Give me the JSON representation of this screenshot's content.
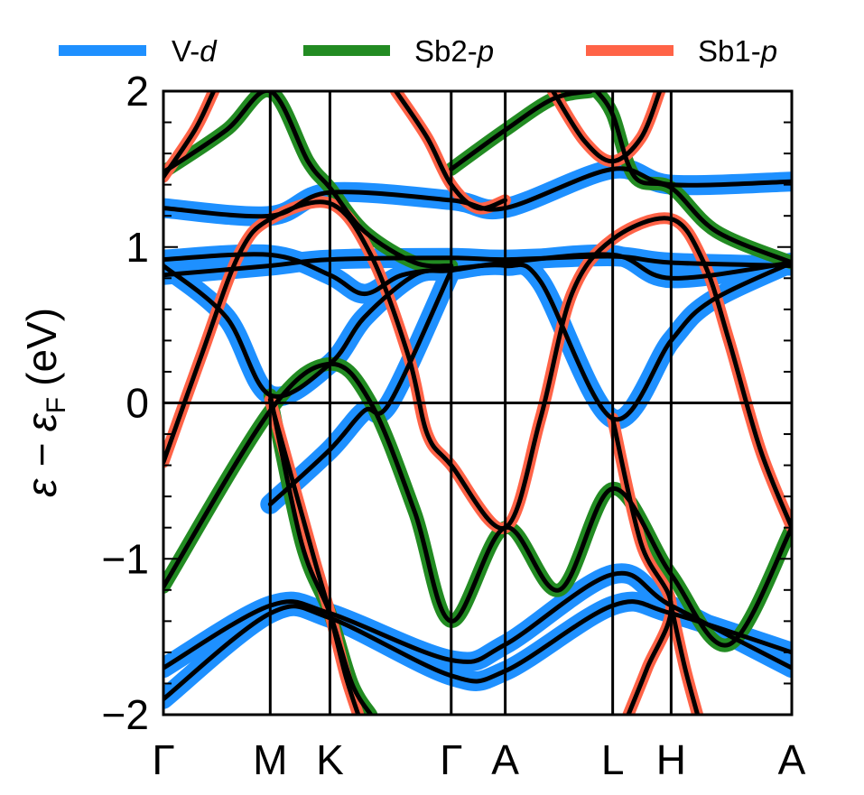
{
  "chart_data": {
    "type": "line",
    "title": "",
    "ylabel": "ε − ε",
    "ylabel_sub": "F",
    "ylabel_unit": "(eV)",
    "xlabel": "",
    "ylim": [
      -2,
      2
    ],
    "y_ticks": [
      -2,
      -1,
      0,
      1,
      2
    ],
    "y_tick_labels": [
      "−2",
      "−1",
      "0",
      "1",
      "2"
    ],
    "y_minor_step": 0.2,
    "k_points": [
      {
        "label": "Γ",
        "x": 0.0
      },
      {
        "label": "M",
        "x": 0.17
      },
      {
        "label": "K",
        "x": 0.265
      },
      {
        "label": "Γ",
        "x": 0.458
      },
      {
        "label": "A",
        "x": 0.544
      },
      {
        "label": "L",
        "x": 0.715
      },
      {
        "label": "H",
        "x": 0.808
      },
      {
        "label": "A",
        "x": 1.0
      }
    ],
    "fermi_level": 0,
    "legend": {
      "placement": "top",
      "entries": [
        {
          "name": "V-",
          "italic": "d",
          "color": "#1e90ff"
        },
        {
          "name": "Sb2-",
          "italic": "p",
          "color": "#228b22"
        },
        {
          "name": "Sb1-",
          "italic": "p",
          "color": "#ff6347"
        }
      ]
    },
    "band_color": "#000000",
    "series": [
      {
        "weight": "V-d",
        "points": [
          [
            0,
            0.82
          ],
          [
            0.17,
            0.88
          ],
          [
            0.265,
            0.92
          ],
          [
            0.458,
            0.93
          ],
          [
            0.544,
            0.92
          ],
          [
            0.715,
            0.94
          ],
          [
            0.808,
            0.9
          ],
          [
            1.0,
            0.88
          ]
        ]
      },
      {
        "weight": "V-d",
        "points": [
          [
            0,
            1.25
          ],
          [
            0.17,
            1.2
          ],
          [
            0.265,
            1.35
          ],
          [
            0.458,
            1.3
          ],
          [
            0.544,
            1.25
          ],
          [
            0.715,
            1.5
          ],
          [
            0.808,
            1.4
          ],
          [
            1.0,
            1.42
          ]
        ]
      },
      {
        "weight": "V-d",
        "points": [
          [
            0,
            0.88
          ],
          [
            0.1,
            0.55
          ],
          [
            0.17,
            0.05
          ],
          [
            0.265,
            0.25
          ],
          [
            0.32,
            0.55
          ],
          [
            0.4,
            0.82
          ],
          [
            0.458,
            0.85
          ],
          [
            0.544,
            0.9
          ],
          [
            0.715,
            0.95
          ],
          [
            0.808,
            0.8
          ],
          [
            1.0,
            0.9
          ]
        ]
      },
      {
        "weight": "V-d",
        "points": [
          [
            0,
            0.92
          ],
          [
            0.17,
            0.95
          ],
          [
            0.265,
            0.82
          ],
          [
            0.32,
            0.7
          ],
          [
            0.38,
            0.82
          ],
          [
            0.458,
            0.86
          ],
          [
            0.544,
            0.88
          ],
          [
            0.6,
            0.78
          ],
          [
            0.715,
            -0.1
          ],
          [
            0.808,
            0.4
          ],
          [
            0.87,
            0.65
          ],
          [
            1.0,
            0.9
          ]
        ]
      },
      {
        "weight": "V-d",
        "points": [
          [
            0,
            -1.7
          ],
          [
            0.17,
            -1.3
          ],
          [
            0.265,
            -1.35
          ],
          [
            0.458,
            -1.65
          ],
          [
            0.544,
            -1.55
          ],
          [
            0.715,
            -1.1
          ],
          [
            0.808,
            -1.3
          ],
          [
            1.0,
            -1.7
          ]
        ]
      },
      {
        "weight": "V-d",
        "points": [
          [
            0,
            -1.9
          ],
          [
            0.17,
            -1.35
          ],
          [
            0.265,
            -1.38
          ],
          [
            0.458,
            -1.75
          ],
          [
            0.544,
            -1.72
          ],
          [
            0.715,
            -1.3
          ],
          [
            0.808,
            -1.35
          ],
          [
            1.0,
            -1.6
          ]
        ]
      },
      {
        "weight": "V-d",
        "points": [
          [
            0.17,
            -0.65
          ],
          [
            0.265,
            -0.3
          ],
          [
            0.32,
            -0.05
          ],
          [
            0.36,
            0.0
          ],
          [
            0.458,
            0.85
          ]
        ]
      },
      {
        "weight": "Sb2-p",
        "points": [
          [
            0,
            1.48
          ],
          [
            0.1,
            1.75
          ],
          [
            0.17,
            2.0
          ],
          [
            0.23,
            1.55
          ],
          [
            0.265,
            1.38
          ],
          [
            0.32,
            1.1
          ],
          [
            0.4,
            0.9
          ],
          [
            0.458,
            0.88
          ]
        ]
      },
      {
        "weight": "Sb2-p",
        "points": [
          [
            0,
            -1.18
          ],
          [
            0.17,
            -0.05
          ],
          [
            0.265,
            0.25
          ],
          [
            0.33,
            0.0
          ],
          [
            0.4,
            -0.7
          ],
          [
            0.458,
            -1.4
          ],
          [
            0.544,
            -0.8
          ],
          [
            0.63,
            -1.2
          ],
          [
            0.715,
            -0.55
          ],
          [
            0.808,
            -1.1
          ],
          [
            0.9,
            -1.55
          ],
          [
            1.0,
            -0.8
          ]
        ]
      },
      {
        "weight": "Sb2-p",
        "points": [
          [
            0.17,
            0.05
          ],
          [
            0.22,
            -0.9
          ],
          [
            0.265,
            -1.35
          ],
          [
            0.3,
            -1.8
          ],
          [
            0.33,
            -2.0
          ]
        ]
      },
      {
        "weight": "Sb2-p",
        "points": [
          [
            0.458,
            1.5
          ],
          [
            0.544,
            1.75
          ],
          [
            0.62,
            1.95
          ],
          [
            0.68,
            2.0
          ]
        ]
      },
      {
        "weight": "Sb2-p",
        "points": [
          [
            0.69,
            2.0
          ],
          [
            0.715,
            1.85
          ],
          [
            0.75,
            1.45
          ],
          [
            0.808,
            1.38
          ],
          [
            0.88,
            1.1
          ],
          [
            1.0,
            0.9
          ]
        ]
      },
      {
        "weight": "Sb1-p",
        "points": [
          [
            0,
            -0.38
          ],
          [
            0.06,
            0.3
          ],
          [
            0.12,
            0.95
          ],
          [
            0.17,
            1.18
          ],
          [
            0.265,
            1.28
          ],
          [
            0.33,
            0.95
          ],
          [
            0.39,
            0.3
          ],
          [
            0.42,
            -0.2
          ],
          [
            0.458,
            -0.4
          ],
          [
            0.544,
            -0.8
          ],
          [
            0.6,
            -0.1
          ],
          [
            0.65,
            0.7
          ],
          [
            0.715,
            1.05
          ],
          [
            0.808,
            1.18
          ],
          [
            0.86,
            0.9
          ],
          [
            0.9,
            0.4
          ],
          [
            0.95,
            -0.3
          ],
          [
            1.0,
            -0.8
          ]
        ]
      },
      {
        "weight": "Sb1-p",
        "points": [
          [
            0,
            1.45
          ],
          [
            0.05,
            1.75
          ],
          [
            0.08,
            2.0
          ]
        ]
      },
      {
        "weight": "Sb1-p",
        "points": [
          [
            0.37,
            2.0
          ],
          [
            0.42,
            1.7
          ],
          [
            0.458,
            1.4
          ],
          [
            0.5,
            1.25
          ],
          [
            0.544,
            1.3
          ]
        ]
      },
      {
        "weight": "Sb1-p",
        "points": [
          [
            0.62,
            2.0
          ],
          [
            0.67,
            1.68
          ],
          [
            0.715,
            1.55
          ],
          [
            0.76,
            1.7
          ],
          [
            0.79,
            2.0
          ]
        ]
      },
      {
        "weight": "Sb1-p",
        "points": [
          [
            0.17,
            0.02
          ],
          [
            0.24,
            -1.0
          ],
          [
            0.265,
            -1.35
          ],
          [
            0.29,
            -1.75
          ],
          [
            0.31,
            -2.0
          ]
        ]
      },
      {
        "weight": "Sb1-p",
        "points": [
          [
            0.808,
            -1.3
          ],
          [
            0.83,
            -1.7
          ],
          [
            0.85,
            -2.0
          ]
        ]
      },
      {
        "weight": "Sb1-p",
        "points": [
          [
            0.715,
            -0.1
          ],
          [
            0.76,
            -0.9
          ],
          [
            0.808,
            -1.3
          ],
          [
            0.77,
            -1.7
          ],
          [
            0.74,
            -2.0
          ]
        ]
      }
    ]
  }
}
